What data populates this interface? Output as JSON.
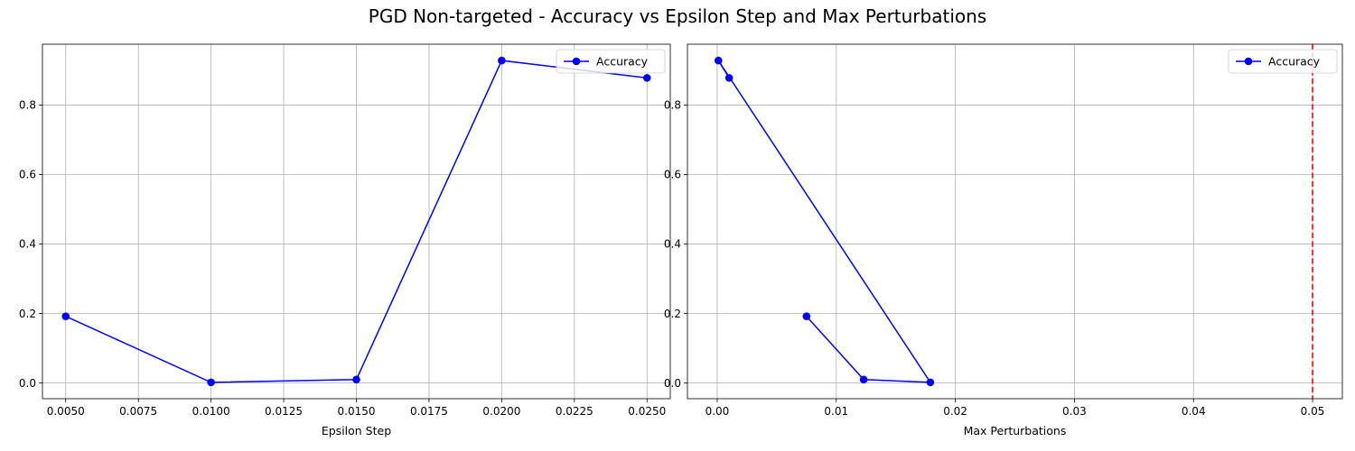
{
  "figure": {
    "title": "PGD Non-targeted - Accuracy vs Epsilon Step and Max Perturbations"
  },
  "chart_data": [
    {
      "type": "line",
      "xlabel": "Epsilon Step",
      "ylabel": "",
      "xlim": [
        0.0042,
        0.0258
      ],
      "ylim": [
        -0.045,
        0.975
      ],
      "xticks": [
        0.005,
        0.0075,
        0.01,
        0.0125,
        0.015,
        0.0175,
        0.02,
        0.0225,
        0.025
      ],
      "xtick_labels": [
        "0.0050",
        "0.0075",
        "0.0100",
        "0.0125",
        "0.0150",
        "0.0175",
        "0.0200",
        "0.0225",
        "0.0250"
      ],
      "yticks": [
        0.0,
        0.2,
        0.4,
        0.6,
        0.8
      ],
      "ytick_labels": [
        "0.0",
        "0.2",
        "0.4",
        "0.6",
        "0.8"
      ],
      "grid": true,
      "legend": "top-right",
      "series": [
        {
          "name": "Accuracy",
          "color": "#0000ff",
          "marker": "circle",
          "x": [
            0.005,
            0.01,
            0.015,
            0.02,
            0.025
          ],
          "y": [
            0.192,
            0.002,
            0.01,
            0.928,
            0.878
          ]
        }
      ]
    },
    {
      "type": "line",
      "xlabel": "Max Perturbations",
      "ylabel": "",
      "xlim": [
        -0.0025,
        0.0525
      ],
      "ylim": [
        -0.045,
        0.975
      ],
      "xticks": [
        0.0,
        0.01,
        0.02,
        0.03,
        0.04,
        0.05
      ],
      "xtick_labels": [
        "0.00",
        "0.01",
        "0.02",
        "0.03",
        "0.04",
        "0.05"
      ],
      "yticks": [
        0.0,
        0.2,
        0.4,
        0.6,
        0.8
      ],
      "ytick_labels": [
        "0.0",
        "0.2",
        "0.4",
        "0.6",
        "0.8"
      ],
      "grid": true,
      "legend": "top-right",
      "series": [
        {
          "name": "Accuracy",
          "color": "#0000ff",
          "marker": "circle",
          "x": [
            0.0075,
            0.0123,
            0.0179,
            0.0001,
            0.001
          ],
          "y": [
            0.192,
            0.01,
            0.002,
            0.928,
            0.878
          ]
        }
      ],
      "reference_lines": [
        {
          "orientation": "vertical",
          "x": 0.05,
          "style": "dashed",
          "color": "#ff0000"
        }
      ]
    }
  ]
}
